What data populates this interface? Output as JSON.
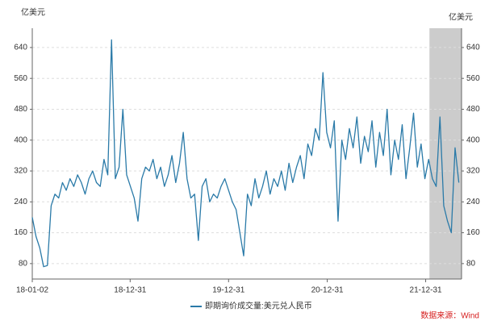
{
  "chart_data": {
    "type": "line",
    "y_unit_left": "亿美元",
    "y_unit_right": "亿美元",
    "source": "数据来源：Wind",
    "x": [
      "2018-01-02",
      "2018-01-16",
      "2018-01-30",
      "2018-02-13",
      "2018-02-27",
      "2018-03-13",
      "2018-03-27",
      "2018-04-10",
      "2018-04-24",
      "2018-05-08",
      "2018-05-22",
      "2018-06-05",
      "2018-06-19",
      "2018-07-03",
      "2018-07-17",
      "2018-07-31",
      "2018-08-14",
      "2018-08-28",
      "2018-09-11",
      "2018-09-25",
      "2018-10-09",
      "2018-10-23",
      "2018-11-06",
      "2018-11-20",
      "2018-12-04",
      "2018-12-18",
      "2019-01-01",
      "2019-01-15",
      "2019-01-29",
      "2019-02-12",
      "2019-02-26",
      "2019-03-12",
      "2019-03-26",
      "2019-04-09",
      "2019-04-23",
      "2019-05-07",
      "2019-05-21",
      "2019-06-04",
      "2019-06-18",
      "2019-07-02",
      "2019-07-16",
      "2019-07-30",
      "2019-08-13",
      "2019-08-27",
      "2019-09-10",
      "2019-09-24",
      "2019-10-08",
      "2019-10-22",
      "2019-11-05",
      "2019-11-19",
      "2019-12-03",
      "2019-12-17",
      "2019-12-31",
      "2020-01-14",
      "2020-01-28",
      "2020-02-11",
      "2020-02-25",
      "2020-03-10",
      "2020-03-24",
      "2020-04-07",
      "2020-04-21",
      "2020-05-05",
      "2020-05-19",
      "2020-06-02",
      "2020-06-16",
      "2020-06-30",
      "2020-07-14",
      "2020-07-28",
      "2020-08-11",
      "2020-08-25",
      "2020-09-08",
      "2020-09-22",
      "2020-10-06",
      "2020-10-20",
      "2020-11-03",
      "2020-11-17",
      "2020-12-01",
      "2020-12-15",
      "2020-12-29",
      "2021-01-12",
      "2021-01-26",
      "2021-02-09",
      "2021-02-23",
      "2021-03-09",
      "2021-03-23",
      "2021-04-06",
      "2021-04-20",
      "2021-05-04",
      "2021-05-18",
      "2021-06-01",
      "2021-06-15",
      "2021-06-29",
      "2021-07-13",
      "2021-07-27",
      "2021-08-10",
      "2021-08-24",
      "2021-09-07",
      "2021-09-21",
      "2021-10-05",
      "2021-10-19",
      "2021-11-02",
      "2021-11-16",
      "2021-11-30",
      "2021-12-14",
      "2021-12-28",
      "2022-01-11",
      "2022-01-25",
      "2022-02-08",
      "2022-02-22",
      "2022-03-08",
      "2022-03-22",
      "2022-04-05",
      "2022-04-19",
      "2022-05-03"
    ],
    "series": [
      {
        "name": "即期询价成交量:美元兑人民币",
        "color": "#2a7aa8",
        "values": [
          200,
          150,
          120,
          72,
          75,
          230,
          260,
          250,
          290,
          270,
          300,
          280,
          310,
          290,
          260,
          300,
          320,
          290,
          280,
          350,
          310,
          660,
          300,
          330,
          480,
          310,
          280,
          250,
          190,
          300,
          330,
          320,
          350,
          300,
          330,
          280,
          310,
          360,
          290,
          340,
          420,
          300,
          250,
          260,
          140,
          280,
          300,
          240,
          260,
          250,
          280,
          300,
          270,
          240,
          220,
          160,
          100,
          260,
          230,
          300,
          250,
          280,
          320,
          260,
          300,
          280,
          320,
          270,
          340,
          290,
          330,
          360,
          300,
          390,
          360,
          430,
          400,
          575,
          420,
          380,
          450,
          190,
          400,
          350,
          430,
          380,
          460,
          340,
          410,
          370,
          450,
          330,
          420,
          360,
          480,
          310,
          400,
          350,
          440,
          300,
          380,
          470,
          330,
          390,
          300,
          350,
          300,
          280,
          460,
          230,
          190,
          160,
          380,
          290
        ]
      }
    ],
    "xlim": [
      "2018-01-02",
      "2022-05-13"
    ],
    "xticks": [
      {
        "value": "2018-01-02",
        "label": "18-01-02"
      },
      {
        "value": "2018-12-31",
        "label": "18-12-31"
      },
      {
        "value": "2019-12-31",
        "label": "19-12-31"
      },
      {
        "value": "2020-12-31",
        "label": "20-12-31"
      },
      {
        "value": "2021-12-31",
        "label": "21-12-31"
      }
    ],
    "ylim": [
      40,
      690
    ],
    "yticks": [
      80,
      160,
      240,
      320,
      400,
      480,
      560,
      640
    ],
    "shaded_range": [
      "2022-01-14",
      "2022-05-13"
    ],
    "shade_color": "#cccccc",
    "grid": true
  }
}
